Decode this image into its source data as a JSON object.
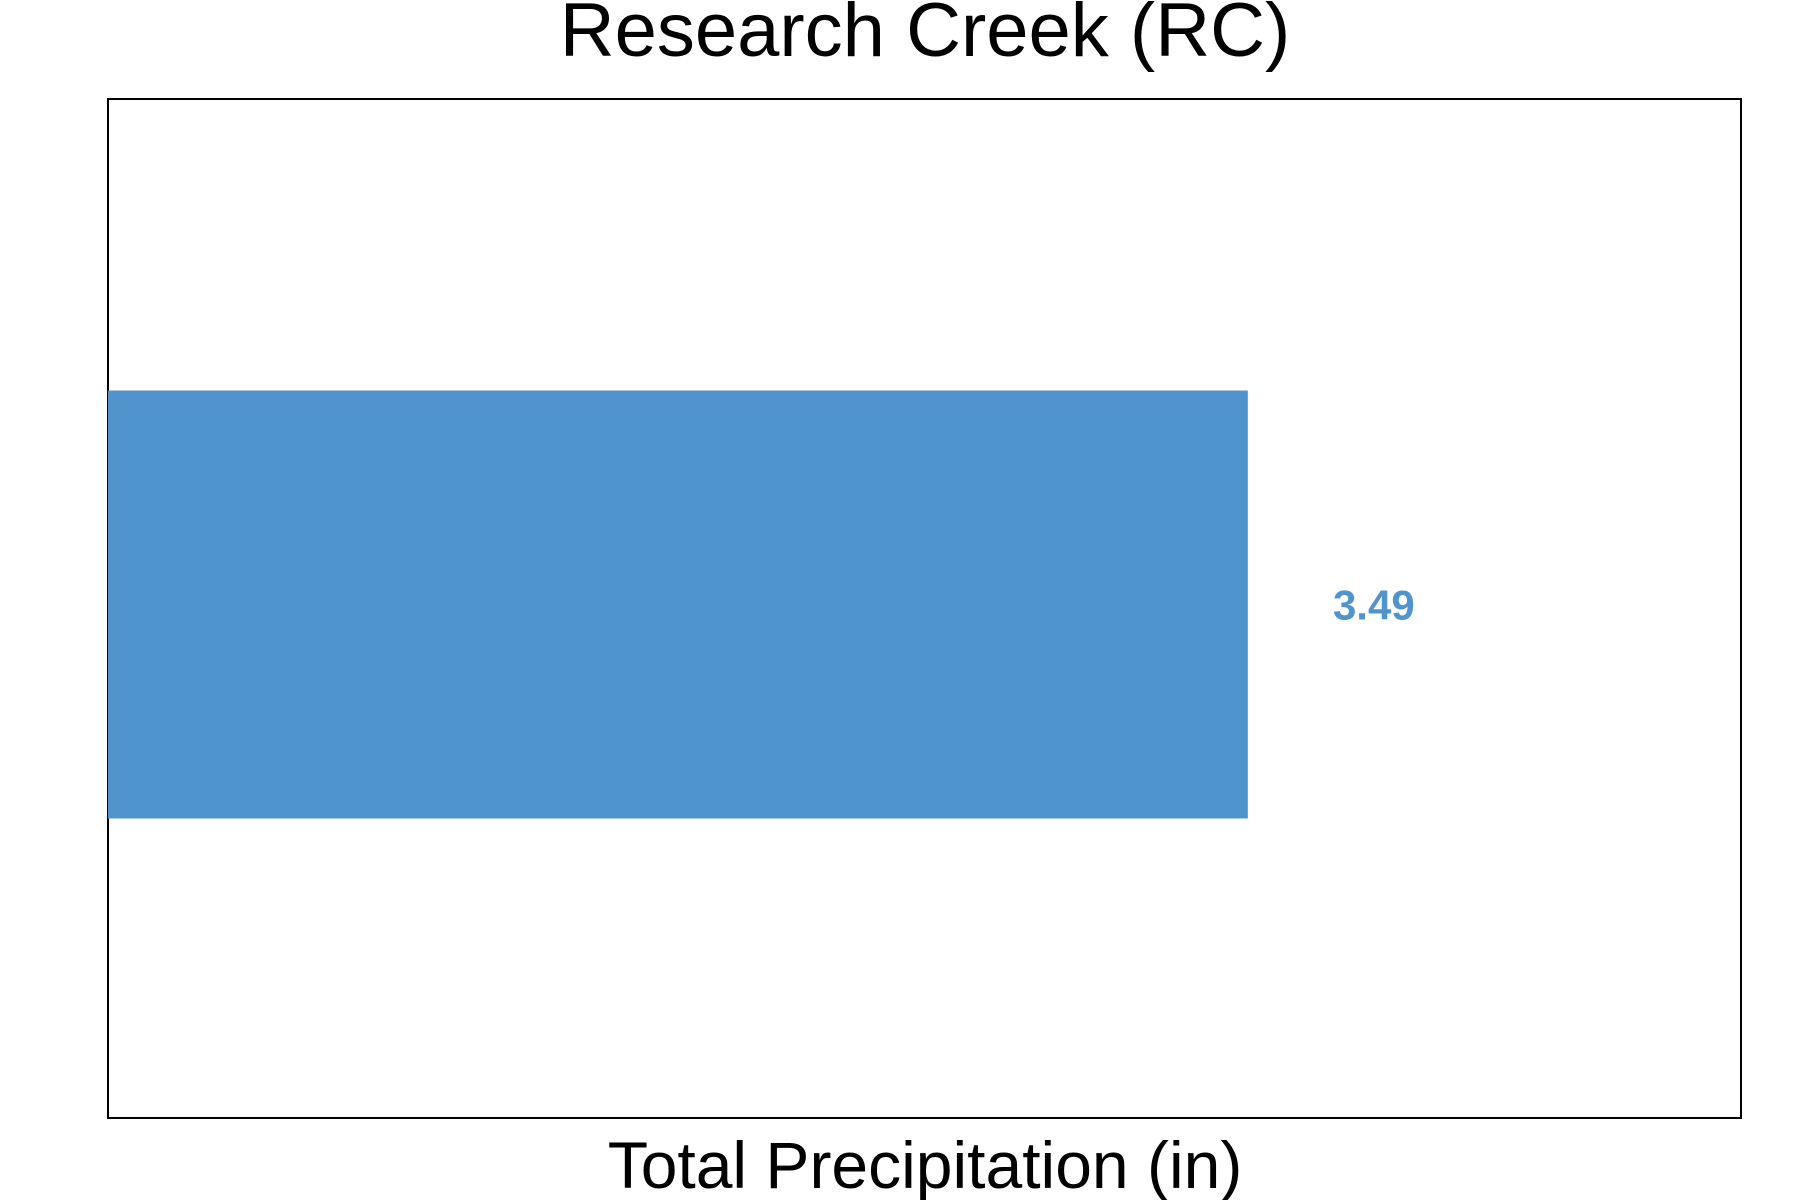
{
  "chart_data": {
    "type": "bar",
    "orientation": "horizontal",
    "title": "Research Creek (RC)",
    "xlabel": "Total Precipitation (in)",
    "ylabel": "",
    "categories": [
      ""
    ],
    "values": [
      3.49
    ],
    "value_labels": [
      "3.49"
    ],
    "xlim": [
      0,
      5.0
    ],
    "ticks_shown": false,
    "grid": false,
    "legend": "none",
    "colors": {
      "bar": "#5094cd",
      "value_label": "#5094cd",
      "text": "#000000",
      "frame": "#000000"
    }
  }
}
